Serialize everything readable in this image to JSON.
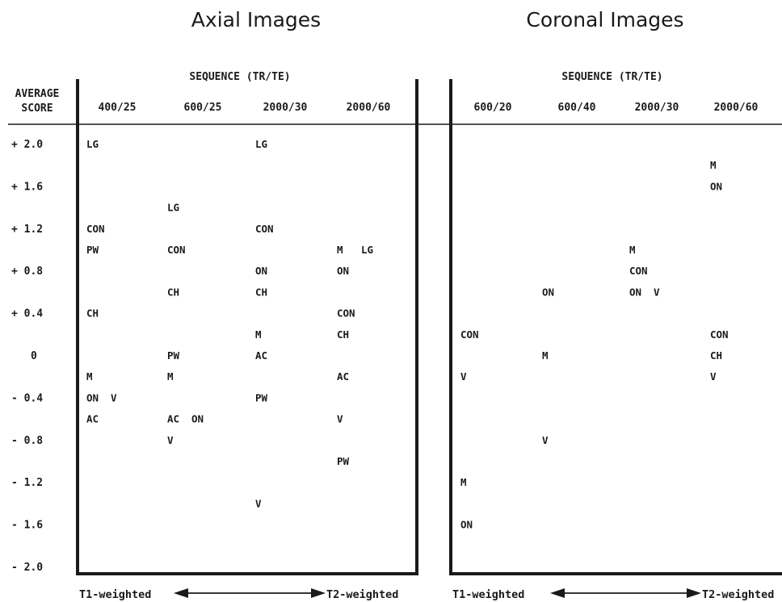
{
  "colors": {
    "ink": "#1a1a1a",
    "background": "#ffffff"
  },
  "y_axis": {
    "label_line1": "AVERAGE",
    "label_line2": "SCORE",
    "ticks": [
      "+ 2.0",
      "+ 1.6",
      "+ 1.2",
      "+ 0.8",
      "+ 0.4",
      "0",
      "- 0.4",
      "- 0.8",
      "- 1.2",
      "- 1.6",
      "- 2.0"
    ]
  },
  "chart_data": [
    {
      "type": "scatter",
      "title": "Axial Images",
      "xlabel": "SEQUENCE (TR/TE)",
      "ylabel": "AVERAGE SCORE",
      "ylim": [
        -2.0,
        2.0
      ],
      "categories": [
        "400/25",
        "600/25",
        "2000/30",
        "2000/60"
      ],
      "weighting": {
        "left": "T1-weighted",
        "right": "T2-weighted"
      },
      "points": [
        {
          "cat": 0,
          "y": 2.0,
          "label": "LG"
        },
        {
          "cat": 0,
          "y": 1.2,
          "label": "CON"
        },
        {
          "cat": 0,
          "y": 1.0,
          "label": "PW"
        },
        {
          "cat": 0,
          "y": 0.4,
          "label": "CH"
        },
        {
          "cat": 0,
          "y": -0.2,
          "label": "M"
        },
        {
          "cat": 0,
          "y": -0.4,
          "label": "ON"
        },
        {
          "cat": 0,
          "y": -0.4,
          "label": "V",
          "slot": 1
        },
        {
          "cat": 0,
          "y": -0.6,
          "label": "AC"
        },
        {
          "cat": 1,
          "y": 1.4,
          "label": "LG"
        },
        {
          "cat": 1,
          "y": 1.0,
          "label": "CON"
        },
        {
          "cat": 1,
          "y": 0.6,
          "label": "CH"
        },
        {
          "cat": 1,
          "y": 0.0,
          "label": "PW"
        },
        {
          "cat": 1,
          "y": -0.2,
          "label": "M"
        },
        {
          "cat": 1,
          "y": -0.6,
          "label": "AC"
        },
        {
          "cat": 1,
          "y": -0.6,
          "label": "ON",
          "slot": 1
        },
        {
          "cat": 1,
          "y": -0.8,
          "label": "V"
        },
        {
          "cat": 2,
          "y": 2.0,
          "label": "LG"
        },
        {
          "cat": 2,
          "y": 1.2,
          "label": "CON"
        },
        {
          "cat": 2,
          "y": 0.8,
          "label": "ON"
        },
        {
          "cat": 2,
          "y": 0.6,
          "label": "CH"
        },
        {
          "cat": 2,
          "y": 0.2,
          "label": "M"
        },
        {
          "cat": 2,
          "y": 0.0,
          "label": "AC"
        },
        {
          "cat": 2,
          "y": -0.4,
          "label": "PW"
        },
        {
          "cat": 2,
          "y": -1.4,
          "label": "V"
        },
        {
          "cat": 3,
          "y": 1.0,
          "label": "M"
        },
        {
          "cat": 3,
          "y": 1.0,
          "label": "LG",
          "slot": 1
        },
        {
          "cat": 3,
          "y": 0.8,
          "label": "ON"
        },
        {
          "cat": 3,
          "y": 0.4,
          "label": "CON"
        },
        {
          "cat": 3,
          "y": 0.2,
          "label": "CH"
        },
        {
          "cat": 3,
          "y": -0.2,
          "label": "AC"
        },
        {
          "cat": 3,
          "y": -0.6,
          "label": "V"
        },
        {
          "cat": 3,
          "y": -1.0,
          "label": "PW"
        }
      ]
    },
    {
      "type": "scatter",
      "title": "Coronal Images",
      "xlabel": "SEQUENCE (TR/TE)",
      "ylabel": "AVERAGE SCORE",
      "ylim": [
        -2.0,
        2.0
      ],
      "categories": [
        "600/20",
        "600/40",
        "2000/30",
        "2000/60"
      ],
      "weighting": {
        "left": "T1-weighted",
        "right": "T2-weighted"
      },
      "points": [
        {
          "cat": 0,
          "y": 0.2,
          "label": "CON"
        },
        {
          "cat": 0,
          "y": -0.2,
          "label": "V"
        },
        {
          "cat": 0,
          "y": -1.2,
          "label": "M"
        },
        {
          "cat": 0,
          "y": -1.6,
          "label": "ON"
        },
        {
          "cat": 1,
          "y": 0.6,
          "label": "ON"
        },
        {
          "cat": 1,
          "y": 0.0,
          "label": "M"
        },
        {
          "cat": 1,
          "y": -0.8,
          "label": "V"
        },
        {
          "cat": 2,
          "y": 1.0,
          "label": "M"
        },
        {
          "cat": 2,
          "y": 0.8,
          "label": "CON"
        },
        {
          "cat": 2,
          "y": 0.6,
          "label": "ON"
        },
        {
          "cat": 2,
          "y": 0.6,
          "label": "V",
          "slot": 1
        },
        {
          "cat": 3,
          "y": 1.8,
          "label": "M"
        },
        {
          "cat": 3,
          "y": 1.6,
          "label": "ON"
        },
        {
          "cat": 3,
          "y": 0.2,
          "label": "CON"
        },
        {
          "cat": 3,
          "y": 0.0,
          "label": "CH"
        },
        {
          "cat": 3,
          "y": -0.2,
          "label": "V"
        }
      ]
    }
  ]
}
